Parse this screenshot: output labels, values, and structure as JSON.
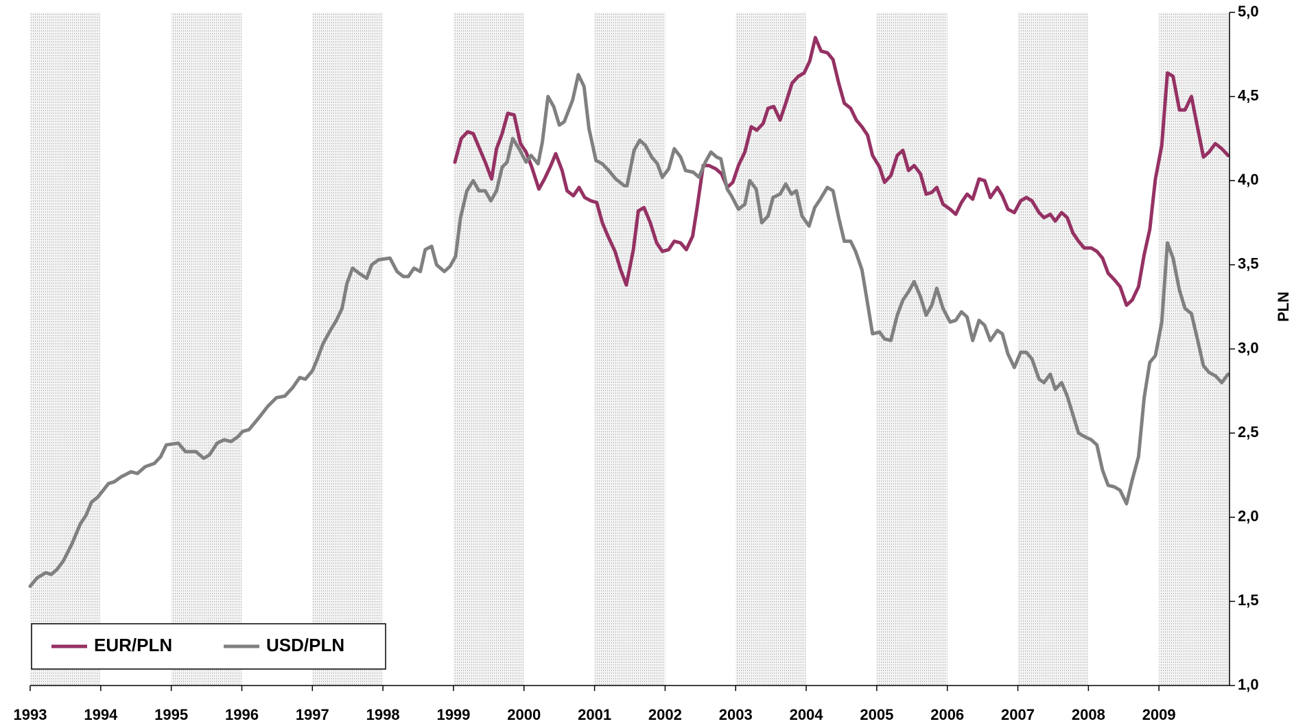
{
  "chart_data": {
    "type": "line",
    "y_label": "PLN",
    "xlim": [
      1993,
      2010
    ],
    "xticks": [
      1993,
      1994,
      1995,
      1996,
      1997,
      1998,
      1999,
      2000,
      2001,
      2002,
      2003,
      2004,
      2005,
      2006,
      2007,
      2008,
      2009
    ],
    "ylim": [
      1.0,
      5.0
    ],
    "yticks": [
      {
        "value": 1.0,
        "label": "1,0"
      },
      {
        "value": 1.5,
        "label": "1,5"
      },
      {
        "value": 2.0,
        "label": "2,0"
      },
      {
        "value": 2.5,
        "label": "2,5"
      },
      {
        "value": 3.0,
        "label": "3,0"
      },
      {
        "value": 3.5,
        "label": "3,5"
      },
      {
        "value": 4.0,
        "label": "4,0"
      },
      {
        "value": 4.5,
        "label": "4,5"
      },
      {
        "value": 5.0,
        "label": "5,0"
      }
    ],
    "legend": "lower left",
    "series": [
      {
        "name": "EUR/PLN",
        "color": "#953163",
        "x": [
          1999.02,
          1999.11,
          1999.2,
          1999.28,
          1999.37,
          1999.46,
          1999.54,
          1999.61,
          1999.69,
          1999.77,
          1999.86,
          1999.95,
          2000.03,
          2000.11,
          2000.21,
          2000.29,
          2000.37,
          2000.45,
          2000.54,
          2000.61,
          2000.7,
          2000.78,
          2000.86,
          2000.95,
          2001.03,
          2001.11,
          2001.19,
          2001.29,
          2001.37,
          2001.45,
          2001.55,
          2001.62,
          2001.7,
          2001.79,
          2001.88,
          2001.96,
          2002.05,
          2002.13,
          2002.22,
          2002.3,
          2002.39,
          2002.45,
          2002.54,
          2002.62,
          2002.72,
          2002.8,
          2002.88,
          2002.96,
          2003.04,
          2003.13,
          2003.22,
          2003.3,
          2003.39,
          2003.46,
          2003.54,
          2003.63,
          2003.71,
          2003.8,
          2003.89,
          2003.97,
          2004.05,
          2004.13,
          2004.21,
          2004.3,
          2004.38,
          2004.46,
          2004.54,
          2004.63,
          2004.71,
          2004.79,
          2004.87,
          2004.94,
          2005.04,
          2005.11,
          2005.2,
          2005.29,
          2005.37,
          2005.45,
          2005.53,
          2005.62,
          2005.7,
          2005.78,
          2005.85,
          2005.94,
          2006.04,
          2006.12,
          2006.2,
          2006.28,
          2006.36,
          2006.45,
          2006.53,
          2006.61,
          2006.71,
          2006.78,
          2006.86,
          2006.95,
          2007.04,
          2007.12,
          2007.2,
          2007.3,
          2007.37,
          2007.46,
          2007.53,
          2007.62,
          2007.7,
          2007.78,
          2007.86,
          2007.94,
          2008.04,
          2008.12,
          2008.2,
          2008.28,
          2008.37,
          2008.45,
          2008.54,
          2008.62,
          2008.71,
          2008.79,
          2008.87,
          2008.95,
          2009.04,
          2009.12,
          2009.2,
          2009.29,
          2009.37,
          2009.46,
          2009.55,
          2009.63,
          2009.71,
          2009.8,
          2009.89,
          2009.98
        ],
        "values": [
          4.11,
          4.25,
          4.29,
          4.28,
          4.19,
          4.1,
          4.01,
          4.19,
          4.28,
          4.4,
          4.39,
          4.22,
          4.17,
          4.08,
          3.95,
          4.01,
          4.08,
          4.16,
          4.06,
          3.94,
          3.91,
          3.96,
          3.9,
          3.88,
          3.87,
          3.75,
          3.67,
          3.58,
          3.47,
          3.38,
          3.59,
          3.82,
          3.84,
          3.75,
          3.63,
          3.58,
          3.59,
          3.64,
          3.63,
          3.59,
          3.67,
          3.83,
          4.09,
          4.09,
          4.07,
          4.04,
          3.96,
          3.99,
          4.09,
          4.17,
          4.32,
          4.3,
          4.34,
          4.43,
          4.44,
          4.36,
          4.46,
          4.58,
          4.62,
          4.64,
          4.71,
          4.85,
          4.77,
          4.76,
          4.72,
          4.58,
          4.46,
          4.43,
          4.36,
          4.32,
          4.27,
          4.15,
          4.08,
          3.99,
          4.03,
          4.15,
          4.18,
          4.06,
          4.09,
          4.04,
          3.92,
          3.93,
          3.96,
          3.86,
          3.83,
          3.8,
          3.87,
          3.92,
          3.89,
          4.01,
          4.0,
          3.9,
          3.96,
          3.91,
          3.83,
          3.81,
          3.88,
          3.9,
          3.88,
          3.81,
          3.78,
          3.8,
          3.76,
          3.81,
          3.78,
          3.69,
          3.64,
          3.6,
          3.6,
          3.58,
          3.54,
          3.45,
          3.41,
          3.37,
          3.26,
          3.29,
          3.37,
          3.56,
          3.71,
          4.01,
          4.21,
          4.64,
          4.62,
          4.42,
          4.42,
          4.5,
          4.31,
          4.14,
          4.17,
          4.22,
          4.19,
          4.15
        ]
      },
      {
        "name": "USD/PLN",
        "color": "#808080",
        "x": [
          1993.0,
          1993.1,
          1993.22,
          1993.3,
          1993.38,
          1993.47,
          1993.59,
          1993.71,
          1993.79,
          1993.87,
          1993.96,
          1994.11,
          1994.19,
          1994.29,
          1994.43,
          1994.52,
          1994.63,
          1994.76,
          1994.85,
          1994.93,
          1995.1,
          1995.2,
          1995.35,
          1995.46,
          1995.54,
          1995.65,
          1995.75,
          1995.85,
          1995.95,
          1996.01,
          1996.1,
          1996.24,
          1996.37,
          1996.49,
          1996.61,
          1996.72,
          1996.82,
          1996.9,
          1997.0,
          1997.07,
          1997.15,
          1997.24,
          1997.34,
          1997.42,
          1997.49,
          1997.57,
          1997.66,
          1997.77,
          1997.84,
          1997.94,
          1998.1,
          1998.2,
          1998.29,
          1998.36,
          1998.44,
          1998.53,
          1998.6,
          1998.69,
          1998.76,
          1998.87,
          1998.95,
          1999.03,
          1999.1,
          1999.19,
          1999.28,
          1999.36,
          1999.45,
          1999.53,
          1999.61,
          1999.69,
          1999.76,
          1999.84,
          1999.93,
          2000.03,
          2000.1,
          2000.2,
          2000.26,
          2000.34,
          2000.42,
          2000.5,
          2000.57,
          2000.69,
          2000.77,
          2000.85,
          2000.92,
          2001.02,
          2001.11,
          2001.2,
          2001.3,
          2001.42,
          2001.46,
          2001.56,
          2001.64,
          2001.72,
          2001.81,
          2001.89,
          2001.96,
          2002.05,
          2002.13,
          2002.22,
          2002.29,
          2002.4,
          2002.48,
          2002.57,
          2002.65,
          2002.73,
          2002.79,
          2002.88,
          2002.94,
          2003.04,
          2003.13,
          2003.2,
          2003.29,
          2003.37,
          2003.46,
          2003.53,
          2003.63,
          2003.71,
          2003.79,
          2003.86,
          2003.94,
          2004.04,
          2004.12,
          2004.2,
          2004.3,
          2004.38,
          2004.46,
          2004.54,
          2004.63,
          2004.7,
          2004.79,
          2004.87,
          2004.94,
          2005.04,
          2005.11,
          2005.2,
          2005.29,
          2005.37,
          2005.45,
          2005.53,
          2005.62,
          2005.7,
          2005.78,
          2005.85,
          2005.94,
          2006.04,
          2006.12,
          2006.2,
          2006.28,
          2006.36,
          2006.45,
          2006.53,
          2006.61,
          2006.71,
          2006.78,
          2006.86,
          2006.95,
          2007.04,
          2007.12,
          2007.2,
          2007.3,
          2007.37,
          2007.46,
          2007.53,
          2007.62,
          2007.7,
          2007.78,
          2007.86,
          2007.94,
          2008.04,
          2008.12,
          2008.2,
          2008.28,
          2008.37,
          2008.45,
          2008.54,
          2008.62,
          2008.71,
          2008.79,
          2008.87,
          2008.95,
          2009.04,
          2009.12,
          2009.2,
          2009.29,
          2009.37,
          2009.46,
          2009.55,
          2009.63,
          2009.71,
          2009.8,
          2009.89,
          2009.98
        ],
        "values": [
          1.59,
          1.64,
          1.67,
          1.66,
          1.69,
          1.74,
          1.84,
          1.96,
          2.01,
          2.09,
          2.12,
          2.2,
          2.21,
          2.24,
          2.27,
          2.26,
          2.3,
          2.32,
          2.36,
          2.43,
          2.44,
          2.39,
          2.39,
          2.35,
          2.37,
          2.44,
          2.46,
          2.45,
          2.48,
          2.51,
          2.52,
          2.59,
          2.66,
          2.71,
          2.72,
          2.77,
          2.83,
          2.82,
          2.87,
          2.94,
          3.03,
          3.1,
          3.17,
          3.24,
          3.39,
          3.48,
          3.45,
          3.42,
          3.5,
          3.53,
          3.54,
          3.46,
          3.43,
          3.43,
          3.48,
          3.46,
          3.59,
          3.61,
          3.5,
          3.46,
          3.49,
          3.55,
          3.78,
          3.94,
          4.0,
          3.94,
          3.94,
          3.88,
          3.94,
          4.08,
          4.11,
          4.25,
          4.19,
          4.11,
          4.15,
          4.1,
          4.23,
          4.5,
          4.44,
          4.33,
          4.35,
          4.48,
          4.63,
          4.56,
          4.31,
          4.12,
          4.1,
          4.06,
          4.01,
          3.97,
          3.97,
          4.18,
          4.24,
          4.21,
          4.14,
          4.1,
          4.02,
          4.07,
          4.19,
          4.14,
          4.06,
          4.05,
          4.02,
          4.11,
          4.17,
          4.14,
          4.13,
          3.95,
          3.91,
          3.83,
          3.86,
          4.0,
          3.95,
          3.75,
          3.79,
          3.9,
          3.92,
          3.98,
          3.92,
          3.94,
          3.79,
          3.73,
          3.84,
          3.89,
          3.96,
          3.94,
          3.78,
          3.64,
          3.64,
          3.58,
          3.47,
          3.27,
          3.09,
          3.1,
          3.06,
          3.05,
          3.2,
          3.29,
          3.34,
          3.4,
          3.31,
          3.2,
          3.26,
          3.36,
          3.24,
          3.16,
          3.17,
          3.22,
          3.19,
          3.05,
          3.17,
          3.14,
          3.05,
          3.11,
          3.09,
          2.97,
          2.89,
          2.98,
          2.98,
          2.94,
          2.82,
          2.8,
          2.85,
          2.76,
          2.8,
          2.72,
          2.61,
          2.5,
          2.48,
          2.46,
          2.43,
          2.28,
          2.19,
          2.18,
          2.16,
          2.08,
          2.22,
          2.36,
          2.71,
          2.92,
          2.96,
          3.16,
          3.63,
          3.54,
          3.35,
          3.24,
          3.21,
          3.05,
          2.9,
          2.86,
          2.84,
          2.8,
          2.85
        ]
      }
    ]
  }
}
